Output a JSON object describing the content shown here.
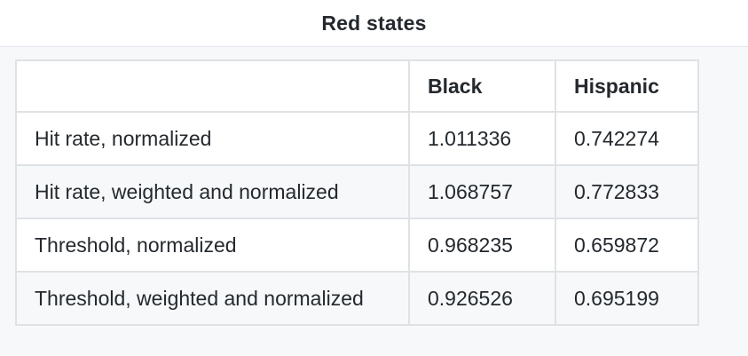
{
  "title": "Red states",
  "table": {
    "headers": [
      "",
      "Black",
      "Hispanic"
    ],
    "rows": [
      {
        "label": "Hit rate, normalized",
        "black": "1.011336",
        "hispanic": "0.742274"
      },
      {
        "label": "Hit rate, weighted and normalized",
        "black": "1.068757",
        "hispanic": "0.772833"
      },
      {
        "label": "Threshold, normalized",
        "black": "0.968235",
        "hispanic": "0.659872"
      },
      {
        "label": "Threshold, weighted and normalized",
        "black": "0.926526",
        "hispanic": "0.695199"
      }
    ]
  }
}
